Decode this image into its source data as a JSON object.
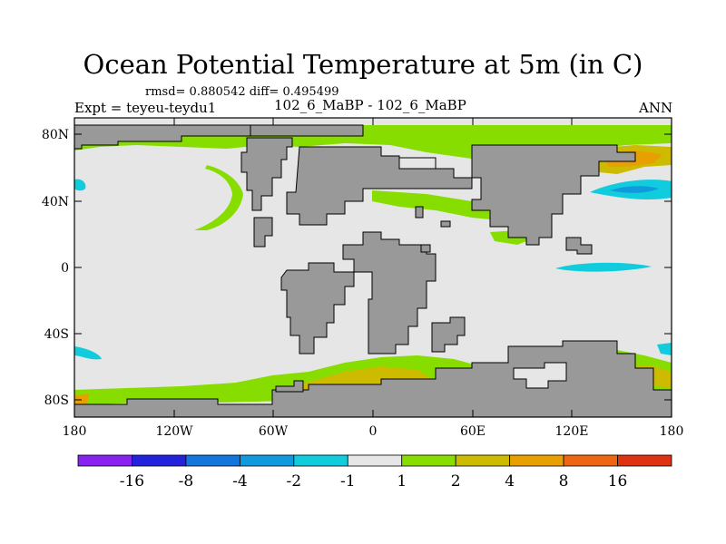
{
  "header": {
    "title": "Ocean Potential Temperature at 5m (in C)",
    "stats": "rmsd= 0.880542 diff= 0.495499",
    "expt": "Expt = teyeu-teydu1",
    "diff_case": "102_6_MaBP - 102_6_MaBP",
    "season": "ANN"
  },
  "map": {
    "x_ticks": [
      "180",
      "120W",
      "60W",
      "0",
      "60E",
      "120E",
      "180"
    ],
    "y_ticks": [
      "80N",
      "40N",
      "0",
      "40S",
      "80S"
    ],
    "colors": {
      "land": "#999999",
      "near_zero": "#e6e6e6",
      "pos_1_2": "#88dd00",
      "pos_2_4": "#ccbb00",
      "pos_4_8": "#e8a000",
      "pos_8_16": "#ee6611",
      "neg_1_2": "#11ccdd",
      "neg_2_4": "#1199dd"
    }
  },
  "colorbar": {
    "labels": [
      "-16",
      "-8",
      "-4",
      "-2",
      "-1",
      "1",
      "2",
      "4",
      "8",
      "16"
    ],
    "colors": [
      "#8822ee",
      "#2222dd",
      "#1177dd",
      "#1199dd",
      "#11ccdd",
      "#e6e6e6",
      "#88dd00",
      "#ccbb00",
      "#e8a000",
      "#ee6611",
      "#dd3311"
    ]
  }
}
